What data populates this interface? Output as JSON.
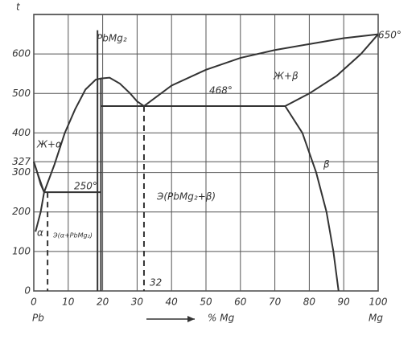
{
  "chart_data": {
    "type": "line",
    "y_label": "t",
    "x_label": "% Mg",
    "x_start_label": "Pb",
    "x_end_label": "Mg",
    "xlim": [
      0,
      100
    ],
    "ylim": [
      0,
      700
    ],
    "xticks": [
      0,
      10,
      20,
      30,
      40,
      50,
      60,
      70,
      80,
      90,
      100
    ],
    "yticks": [
      0,
      100,
      200,
      300,
      327,
      400,
      500,
      600
    ],
    "grid": true,
    "color": "#333",
    "series": [
      {
        "x": [
          0,
          1,
          2,
          3
        ],
        "values": [
          327,
          300,
          275,
          250
        ]
      },
      {
        "x": [
          3,
          6,
          9,
          12,
          15,
          18,
          19.5
        ],
        "values": [
          250,
          320,
          400,
          460,
          510,
          535,
          538
        ]
      },
      {
        "x": [
          19.5,
          22,
          25,
          28,
          30,
          32
        ],
        "values": [
          538,
          540,
          525,
          500,
          480,
          468
        ]
      },
      {
        "x": [
          32,
          40,
          50,
          60,
          70,
          80,
          90,
          100
        ],
        "values": [
          468,
          520,
          560,
          590,
          610,
          625,
          640,
          650
        ]
      },
      {
        "x": [
          19.5,
          73
        ],
        "values": [
          468,
          468
        ]
      },
      {
        "x": [
          73,
          80,
          88,
          95,
          100
        ],
        "values": [
          468,
          500,
          545,
          600,
          650
        ]
      },
      {
        "x": [
          73,
          78,
          82,
          85,
          87,
          88.5
        ],
        "values": [
          468,
          400,
          300,
          200,
          100,
          0
        ]
      },
      {
        "x": [
          3,
          19.5
        ],
        "values": [
          250,
          250
        ]
      },
      {
        "x": [
          0,
          1,
          2,
          3,
          2,
          0.5
        ],
        "values": [
          327,
          300,
          270,
          250,
          200,
          150
        ]
      },
      {
        "x": [
          18.5,
          18.5
        ],
        "values": [
          0,
          660
        ]
      },
      {
        "x": [
          19.5,
          19.5
        ],
        "values": [
          0,
          538
        ]
      },
      {
        "x": [
          4,
          4
        ],
        "values": [
          250,
          0
        ],
        "dash": true
      },
      {
        "x": [
          32,
          32
        ],
        "values": [
          468,
          0
        ],
        "dash": true
      }
    ],
    "annotations": [
      "PbMg₂",
      "Ж+α",
      "250°",
      "468°",
      "Ж+β",
      "β",
      "Э(PbMg₂+β)",
      "α",
      "Э(α+PbMg₂)",
      "32",
      "650°"
    ]
  }
}
